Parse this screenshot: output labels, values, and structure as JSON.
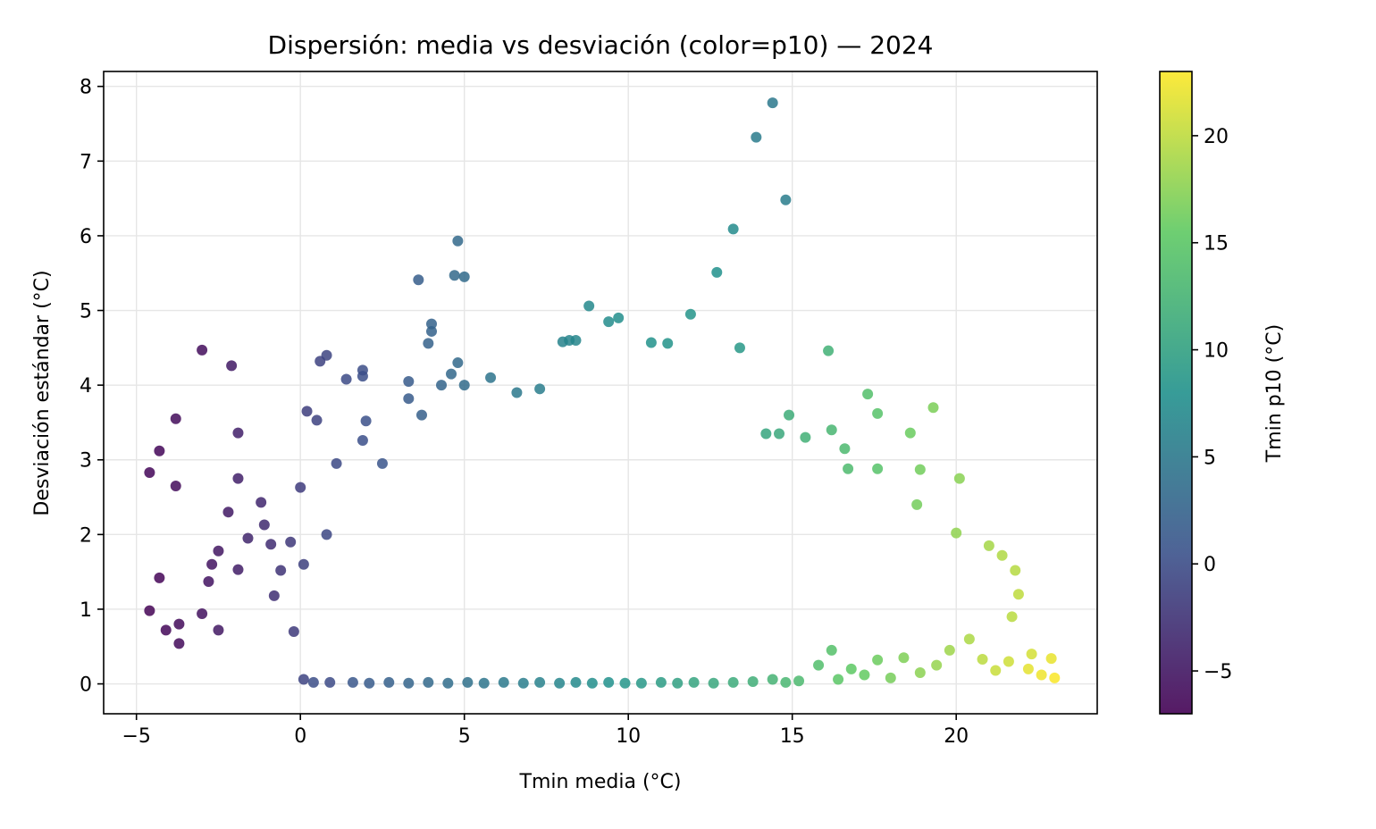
{
  "chart_data": {
    "type": "scatter",
    "title": "Dispersión: media vs desviación (color=p10) — 2024",
    "xlabel": "Tmin media (°C)",
    "ylabel": "Desviación estándar (°C)",
    "xlim": [
      -6,
      24.3
    ],
    "ylim": [
      -0.4,
      8.2
    ],
    "xticks": [
      -5,
      0,
      5,
      10,
      15,
      20
    ],
    "yticks": [
      0,
      1,
      2,
      3,
      4,
      5,
      6,
      7,
      8
    ],
    "grid": true,
    "colorbar": {
      "label": "Tmin p10 (°C)",
      "range": [
        -7,
        23
      ],
      "ticks": [
        -5,
        0,
        5,
        10,
        15,
        20
      ],
      "colormap": "viridis"
    },
    "series": [
      {
        "points": [
          [
            -4.6,
            2.83,
            -6.5
          ],
          [
            -4.6,
            0.98,
            -6.8
          ],
          [
            -4.3,
            3.12,
            -6.5
          ],
          [
            -4.3,
            1.42,
            -6.6
          ],
          [
            -4.1,
            0.72,
            -6.4
          ],
          [
            -3.8,
            3.55,
            -6.0
          ],
          [
            -3.8,
            2.65,
            -6.0
          ],
          [
            -3.7,
            0.8,
            -6.1
          ],
          [
            -3.7,
            0.54,
            -6.2
          ],
          [
            -3.0,
            4.47,
            -5.9
          ],
          [
            -3.0,
            0.94,
            -5.6
          ],
          [
            -2.8,
            1.37,
            -5.4
          ],
          [
            -2.7,
            1.6,
            -5.3
          ],
          [
            -2.5,
            1.78,
            -5.1
          ],
          [
            -2.5,
            0.72,
            -5.0
          ],
          [
            -2.2,
            2.3,
            -4.8
          ],
          [
            -2.1,
            4.26,
            -4.8
          ],
          [
            -1.9,
            3.36,
            -4.2
          ],
          [
            -1.9,
            2.75,
            -4.3
          ],
          [
            -1.9,
            1.53,
            -4.5
          ],
          [
            -1.6,
            1.95,
            -3.8
          ],
          [
            -1.2,
            2.43,
            -3.6
          ],
          [
            -1.1,
            2.13,
            -3.3
          ],
          [
            -0.9,
            1.87,
            -3.1
          ],
          [
            -0.8,
            1.18,
            -2.8
          ],
          [
            -0.6,
            1.52,
            -2.4
          ],
          [
            -0.3,
            1.9,
            -2.0
          ],
          [
            -0.2,
            0.7,
            -1.8
          ],
          [
            0.0,
            2.63,
            -1.6
          ],
          [
            0.1,
            1.6,
            -1.3
          ],
          [
            0.1,
            0.06,
            -0.9
          ],
          [
            0.2,
            3.65,
            -1.4
          ],
          [
            0.5,
            3.53,
            -1.0
          ],
          [
            0.6,
            4.32,
            -1.0
          ],
          [
            0.8,
            4.4,
            -0.8
          ],
          [
            0.8,
            2.0,
            -0.5
          ],
          [
            0.9,
            0.02,
            -0.2
          ],
          [
            1.1,
            2.95,
            -0.3
          ],
          [
            1.4,
            4.08,
            -0.2
          ],
          [
            1.9,
            4.2,
            0.0
          ],
          [
            1.9,
            4.12,
            0.1
          ],
          [
            1.9,
            3.26,
            0.2
          ],
          [
            2.0,
            3.52,
            0.3
          ],
          [
            2.5,
            2.95,
            0.9
          ],
          [
            3.3,
            3.82,
            1.6
          ],
          [
            3.3,
            4.05,
            1.6
          ],
          [
            3.6,
            5.41,
            1.8
          ],
          [
            3.7,
            3.6,
            2.0
          ],
          [
            3.9,
            4.56,
            2.3
          ],
          [
            4.0,
            4.72,
            2.4
          ],
          [
            4.0,
            4.82,
            2.4
          ],
          [
            4.3,
            4.0,
            2.6
          ],
          [
            4.6,
            4.15,
            3.0
          ],
          [
            4.7,
            5.47,
            3.1
          ],
          [
            4.8,
            5.93,
            3.2
          ],
          [
            4.8,
            4.3,
            3.1
          ],
          [
            5.0,
            5.45,
            3.4
          ],
          [
            5.0,
            4.0,
            3.5
          ],
          [
            5.8,
            4.1,
            4.4
          ],
          [
            6.6,
            3.9,
            5.0
          ],
          [
            7.3,
            3.95,
            5.6
          ],
          [
            8.0,
            4.58,
            6.3
          ],
          [
            8.2,
            4.6,
            6.5
          ],
          [
            8.4,
            4.6,
            6.7
          ],
          [
            8.8,
            5.06,
            6.9
          ],
          [
            9.4,
            4.85,
            7.4
          ],
          [
            9.7,
            4.9,
            7.6
          ],
          [
            10.7,
            4.57,
            8.1
          ],
          [
            11.2,
            4.56,
            8.3
          ],
          [
            11.9,
            4.95,
            8.4
          ],
          [
            12.7,
            5.51,
            7.9
          ],
          [
            13.2,
            6.09,
            7.3
          ],
          [
            13.9,
            7.32,
            5.4
          ],
          [
            14.4,
            7.78,
            5.0
          ],
          [
            14.8,
            6.48,
            5.6
          ],
          [
            13.4,
            4.5,
            8.9
          ],
          [
            14.2,
            3.35,
            10.5
          ],
          [
            14.6,
            3.35,
            11.0
          ],
          [
            14.9,
            3.6,
            11.5
          ],
          [
            15.4,
            3.3,
            12.0
          ],
          [
            16.1,
            4.46,
            12.1
          ],
          [
            16.2,
            3.4,
            12.8
          ],
          [
            16.6,
            3.15,
            13.3
          ],
          [
            16.7,
            2.88,
            13.5
          ],
          [
            17.3,
            3.88,
            14.0
          ],
          [
            17.6,
            3.62,
            14.5
          ],
          [
            17.6,
            2.88,
            14.5
          ],
          [
            18.6,
            3.36,
            16.0
          ],
          [
            18.8,
            2.4,
            16.5
          ],
          [
            19.3,
            3.7,
            16.8
          ],
          [
            18.9,
            2.87,
            16.4
          ],
          [
            20.1,
            2.75,
            17.5
          ],
          [
            20.0,
            2.02,
            17.8
          ],
          [
            21.0,
            1.85,
            18.8
          ],
          [
            21.4,
            1.72,
            19.3
          ],
          [
            21.8,
            1.52,
            19.6
          ],
          [
            21.9,
            1.2,
            20.0
          ],
          [
            21.7,
            0.9,
            19.8
          ],
          [
            22.3,
            0.4,
            21.0
          ],
          [
            22.9,
            0.34,
            22.0
          ],
          [
            23.0,
            0.08,
            22.8
          ],
          [
            22.6,
            0.12,
            22.3
          ],
          [
            22.2,
            0.2,
            21.8
          ],
          [
            21.6,
            0.3,
            20.8
          ],
          [
            21.2,
            0.18,
            20.5
          ],
          [
            20.8,
            0.33,
            19.9
          ],
          [
            20.4,
            0.6,
            19.2
          ],
          [
            19.8,
            0.45,
            18.5
          ],
          [
            19.4,
            0.25,
            18.1
          ],
          [
            18.9,
            0.15,
            17.6
          ],
          [
            18.4,
            0.35,
            17.0
          ],
          [
            18.0,
            0.08,
            16.6
          ],
          [
            17.6,
            0.32,
            16.1
          ],
          [
            17.2,
            0.12,
            15.7
          ],
          [
            16.8,
            0.2,
            15.3
          ],
          [
            16.4,
            0.06,
            14.9
          ],
          [
            16.2,
            0.45,
            14.3
          ],
          [
            15.8,
            0.25,
            13.9
          ],
          [
            15.2,
            0.04,
            13.3
          ],
          [
            14.8,
            0.02,
            12.9
          ],
          [
            14.4,
            0.06,
            12.4
          ],
          [
            13.8,
            0.03,
            11.8
          ],
          [
            13.2,
            0.02,
            11.3
          ],
          [
            12.6,
            0.01,
            10.8
          ],
          [
            12.0,
            0.02,
            10.4
          ],
          [
            11.5,
            0.01,
            9.9
          ],
          [
            11.0,
            0.02,
            9.4
          ],
          [
            10.4,
            0.01,
            8.9
          ],
          [
            9.9,
            0.01,
            8.5
          ],
          [
            9.4,
            0.02,
            8.0
          ],
          [
            8.9,
            0.01,
            7.6
          ],
          [
            8.4,
            0.02,
            7.1
          ],
          [
            7.9,
            0.01,
            6.6
          ],
          [
            7.3,
            0.02,
            6.1
          ],
          [
            6.8,
            0.01,
            5.6
          ],
          [
            6.2,
            0.02,
            5.1
          ],
          [
            5.6,
            0.01,
            4.6
          ],
          [
            5.1,
            0.02,
            4.1
          ],
          [
            4.5,
            0.01,
            3.6
          ],
          [
            3.9,
            0.02,
            3.1
          ],
          [
            3.3,
            0.01,
            2.6
          ],
          [
            2.7,
            0.02,
            2.1
          ],
          [
            2.1,
            0.01,
            1.6
          ],
          [
            1.6,
            0.02,
            1.1
          ],
          [
            0.4,
            0.02,
            0.0
          ]
        ]
      }
    ]
  }
}
